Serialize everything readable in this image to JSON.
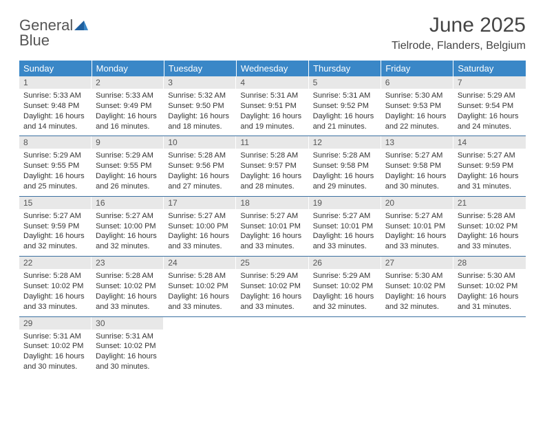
{
  "brand": {
    "name1": "General",
    "name2": "Blue"
  },
  "title": "June 2025",
  "location": "Tielrode, Flanders, Belgium",
  "colors": {
    "header_bg": "#3a87c7",
    "header_text": "#ffffff",
    "daynum_bg": "#e8e8e8",
    "border": "#3a6fa0",
    "logo_gray": "#555555",
    "logo_blue": "#3a7fc4"
  },
  "weekdays": [
    "Sunday",
    "Monday",
    "Tuesday",
    "Wednesday",
    "Thursday",
    "Friday",
    "Saturday"
  ],
  "weeks": [
    [
      {
        "n": "1",
        "sr": "Sunrise: 5:33 AM",
        "ss": "Sunset: 9:48 PM",
        "d1": "Daylight: 16 hours",
        "d2": "and 14 minutes."
      },
      {
        "n": "2",
        "sr": "Sunrise: 5:33 AM",
        "ss": "Sunset: 9:49 PM",
        "d1": "Daylight: 16 hours",
        "d2": "and 16 minutes."
      },
      {
        "n": "3",
        "sr": "Sunrise: 5:32 AM",
        "ss": "Sunset: 9:50 PM",
        "d1": "Daylight: 16 hours",
        "d2": "and 18 minutes."
      },
      {
        "n": "4",
        "sr": "Sunrise: 5:31 AM",
        "ss": "Sunset: 9:51 PM",
        "d1": "Daylight: 16 hours",
        "d2": "and 19 minutes."
      },
      {
        "n": "5",
        "sr": "Sunrise: 5:31 AM",
        "ss": "Sunset: 9:52 PM",
        "d1": "Daylight: 16 hours",
        "d2": "and 21 minutes."
      },
      {
        "n": "6",
        "sr": "Sunrise: 5:30 AM",
        "ss": "Sunset: 9:53 PM",
        "d1": "Daylight: 16 hours",
        "d2": "and 22 minutes."
      },
      {
        "n": "7",
        "sr": "Sunrise: 5:29 AM",
        "ss": "Sunset: 9:54 PM",
        "d1": "Daylight: 16 hours",
        "d2": "and 24 minutes."
      }
    ],
    [
      {
        "n": "8",
        "sr": "Sunrise: 5:29 AM",
        "ss": "Sunset: 9:55 PM",
        "d1": "Daylight: 16 hours",
        "d2": "and 25 minutes."
      },
      {
        "n": "9",
        "sr": "Sunrise: 5:29 AM",
        "ss": "Sunset: 9:55 PM",
        "d1": "Daylight: 16 hours",
        "d2": "and 26 minutes."
      },
      {
        "n": "10",
        "sr": "Sunrise: 5:28 AM",
        "ss": "Sunset: 9:56 PM",
        "d1": "Daylight: 16 hours",
        "d2": "and 27 minutes."
      },
      {
        "n": "11",
        "sr": "Sunrise: 5:28 AM",
        "ss": "Sunset: 9:57 PM",
        "d1": "Daylight: 16 hours",
        "d2": "and 28 minutes."
      },
      {
        "n": "12",
        "sr": "Sunrise: 5:28 AM",
        "ss": "Sunset: 9:58 PM",
        "d1": "Daylight: 16 hours",
        "d2": "and 29 minutes."
      },
      {
        "n": "13",
        "sr": "Sunrise: 5:27 AM",
        "ss": "Sunset: 9:58 PM",
        "d1": "Daylight: 16 hours",
        "d2": "and 30 minutes."
      },
      {
        "n": "14",
        "sr": "Sunrise: 5:27 AM",
        "ss": "Sunset: 9:59 PM",
        "d1": "Daylight: 16 hours",
        "d2": "and 31 minutes."
      }
    ],
    [
      {
        "n": "15",
        "sr": "Sunrise: 5:27 AM",
        "ss": "Sunset: 9:59 PM",
        "d1": "Daylight: 16 hours",
        "d2": "and 32 minutes."
      },
      {
        "n": "16",
        "sr": "Sunrise: 5:27 AM",
        "ss": "Sunset: 10:00 PM",
        "d1": "Daylight: 16 hours",
        "d2": "and 32 minutes."
      },
      {
        "n": "17",
        "sr": "Sunrise: 5:27 AM",
        "ss": "Sunset: 10:00 PM",
        "d1": "Daylight: 16 hours",
        "d2": "and 33 minutes."
      },
      {
        "n": "18",
        "sr": "Sunrise: 5:27 AM",
        "ss": "Sunset: 10:01 PM",
        "d1": "Daylight: 16 hours",
        "d2": "and 33 minutes."
      },
      {
        "n": "19",
        "sr": "Sunrise: 5:27 AM",
        "ss": "Sunset: 10:01 PM",
        "d1": "Daylight: 16 hours",
        "d2": "and 33 minutes."
      },
      {
        "n": "20",
        "sr": "Sunrise: 5:27 AM",
        "ss": "Sunset: 10:01 PM",
        "d1": "Daylight: 16 hours",
        "d2": "and 33 minutes."
      },
      {
        "n": "21",
        "sr": "Sunrise: 5:28 AM",
        "ss": "Sunset: 10:02 PM",
        "d1": "Daylight: 16 hours",
        "d2": "and 33 minutes."
      }
    ],
    [
      {
        "n": "22",
        "sr": "Sunrise: 5:28 AM",
        "ss": "Sunset: 10:02 PM",
        "d1": "Daylight: 16 hours",
        "d2": "and 33 minutes."
      },
      {
        "n": "23",
        "sr": "Sunrise: 5:28 AM",
        "ss": "Sunset: 10:02 PM",
        "d1": "Daylight: 16 hours",
        "d2": "and 33 minutes."
      },
      {
        "n": "24",
        "sr": "Sunrise: 5:28 AM",
        "ss": "Sunset: 10:02 PM",
        "d1": "Daylight: 16 hours",
        "d2": "and 33 minutes."
      },
      {
        "n": "25",
        "sr": "Sunrise: 5:29 AM",
        "ss": "Sunset: 10:02 PM",
        "d1": "Daylight: 16 hours",
        "d2": "and 33 minutes."
      },
      {
        "n": "26",
        "sr": "Sunrise: 5:29 AM",
        "ss": "Sunset: 10:02 PM",
        "d1": "Daylight: 16 hours",
        "d2": "and 32 minutes."
      },
      {
        "n": "27",
        "sr": "Sunrise: 5:30 AM",
        "ss": "Sunset: 10:02 PM",
        "d1": "Daylight: 16 hours",
        "d2": "and 32 minutes."
      },
      {
        "n": "28",
        "sr": "Sunrise: 5:30 AM",
        "ss": "Sunset: 10:02 PM",
        "d1": "Daylight: 16 hours",
        "d2": "and 31 minutes."
      }
    ],
    [
      {
        "n": "29",
        "sr": "Sunrise: 5:31 AM",
        "ss": "Sunset: 10:02 PM",
        "d1": "Daylight: 16 hours",
        "d2": "and 30 minutes."
      },
      {
        "n": "30",
        "sr": "Sunrise: 5:31 AM",
        "ss": "Sunset: 10:02 PM",
        "d1": "Daylight: 16 hours",
        "d2": "and 30 minutes."
      },
      null,
      null,
      null,
      null,
      null
    ]
  ]
}
